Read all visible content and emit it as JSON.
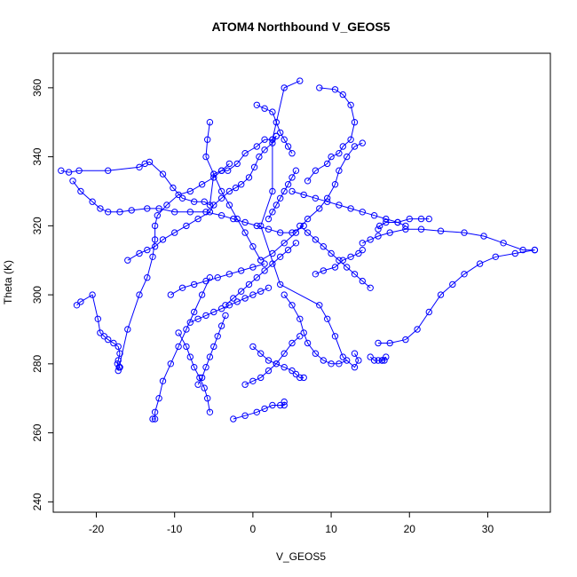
{
  "chart_data": {
    "type": "line",
    "title": "ATOM4 Northbound V_GEOS5",
    "xlabel": "V_GEOS5",
    "ylabel": "Theta (K)",
    "xlim": [
      -25.5,
      38
    ],
    "ylim": [
      237,
      370
    ],
    "xticks": [
      -20,
      -10,
      0,
      10,
      20,
      30
    ],
    "yticks": [
      240,
      260,
      280,
      300,
      320,
      340,
      360
    ],
    "grid": false,
    "legend": "none",
    "series_color": "#0000ff",
    "markers": "open-circle",
    "series": [
      {
        "x": [
          -24.5,
          -23.5,
          -22.2,
          -18.5,
          -14.5,
          -13.8,
          -13.2,
          -11.5,
          -10.2,
          -9.0,
          -7.5,
          -6.2,
          -5.5,
          -5.0,
          -4.0,
          -3.2,
          -2.0,
          -1.0,
          0.5,
          1.5,
          2.5,
          3.0
        ],
        "y": [
          336,
          335.5,
          336,
          336,
          337,
          338,
          338.5,
          335,
          331,
          328,
          327,
          327,
          326,
          335,
          336,
          336,
          338,
          341,
          343,
          345,
          345,
          346
        ]
      },
      {
        "x": [
          3.0,
          2.5,
          1.5,
          0.8,
          0.2,
          -0.5,
          -1.5,
          -2.2,
          -3.0,
          -4.0,
          -5.0,
          -5.5,
          -7.0,
          -8.5,
          -10.0,
          -11.5,
          -12.5,
          -13.5,
          -14.5,
          -16.0
        ],
        "y": [
          346,
          344,
          342,
          340,
          337,
          334,
          332,
          331,
          330,
          328,
          326,
          324,
          322,
          320,
          318,
          316,
          314,
          313,
          312,
          310
        ]
      },
      {
        "x": [
          -23,
          -22,
          -20.5,
          -19.5,
          -18.5,
          -17.0,
          -15.5,
          -13.5,
          -12.0,
          -10.0,
          -8.0,
          -6.0,
          -4.0,
          -2.5,
          -1.0,
          0.5,
          2.0,
          3.5,
          5.0,
          6.5
        ],
        "y": [
          333,
          330,
          327,
          325,
          324,
          324,
          324.5,
          325,
          325,
          324,
          324,
          324,
          323,
          322,
          321,
          320,
          319,
          318,
          318,
          320
        ]
      },
      {
        "x": [
          -22.5,
          -22.0,
          -20.5,
          -19.8,
          -19.5,
          -19.0,
          -18.5,
          -17.8,
          -17.2,
          -17.0,
          -17.2,
          -17.3,
          -17.0,
          -17.1,
          -17.0
        ],
        "y": [
          297,
          298,
          300,
          293,
          289,
          288,
          287,
          286,
          285,
          283,
          281,
          280,
          279,
          279,
          279
        ]
      },
      {
        "x": [
          -17.2,
          -16.0,
          -14.5,
          -13.5,
          -12.8,
          -12.5,
          -12.5,
          -12.2,
          -11.0,
          -9.5,
          -8.0,
          -6.5,
          -5.0,
          -4.0,
          -3.0
        ],
        "y": [
          278,
          290,
          300,
          305,
          311,
          316,
          320,
          323,
          326,
          329,
          330,
          332,
          334,
          336,
          338
        ]
      },
      {
        "x": [
          6.0,
          4.0,
          2.5,
          2.5,
          1.0,
          3.5,
          8.5,
          9.5,
          10.5,
          11.5,
          13.0,
          13.5,
          13.0
        ],
        "y": [
          362,
          360,
          345,
          330,
          320,
          303,
          297,
          293,
          288,
          282,
          279,
          281,
          283
        ]
      },
      {
        "x": [
          8.5,
          10.5,
          11.5,
          12.5,
          13.0,
          12.5,
          11.5,
          11.0,
          10.0,
          9.5,
          8.0,
          7.0
        ],
        "y": [
          360,
          359.5,
          358,
          355,
          350,
          345,
          343,
          341,
          340,
          338,
          336,
          333
        ]
      },
      {
        "x": [
          14.0,
          13.0,
          12.0,
          11.0,
          10.5,
          9.5,
          8.5,
          7.0,
          5.5,
          4.0,
          2.5,
          1.0
        ],
        "y": [
          344,
          343,
          340,
          336,
          332,
          328,
          325,
          322,
          318,
          315,
          312,
          310
        ]
      },
      {
        "x": [
          36.0,
          34.5,
          32.0,
          29.5,
          27.0,
          24.0,
          21.5,
          19.5,
          17.5,
          16.0,
          15.0,
          14.0
        ],
        "y": [
          313,
          313,
          315,
          317,
          318,
          318.5,
          319,
          319,
          318,
          317,
          316,
          315
        ]
      },
      {
        "x": [
          36.0,
          33.5,
          31.0,
          29.0,
          27.0,
          25.5,
          24.0,
          22.5,
          21.0,
          19.5,
          17.5,
          16.0
        ],
        "y": [
          313,
          312,
          311,
          309,
          306,
          303,
          300,
          295,
          290,
          287,
          286,
          286
        ]
      },
      {
        "x": [
          22.5,
          21.5,
          20.0,
          18.5,
          17.0,
          16.2,
          16.0
        ],
        "y": [
          322,
          322,
          322,
          321,
          321,
          320,
          319
        ]
      },
      {
        "x": [
          16.5,
          16.8,
          17.0,
          16.5,
          16.0,
          15.5,
          15.0
        ],
        "y": [
          281,
          281,
          282,
          281,
          281,
          281,
          282
        ]
      },
      {
        "x": [
          -12.8,
          -12.5,
          -12.5,
          -12.0,
          -11.5,
          -10.5,
          -9.5,
          -8.5,
          -7.5,
          -6.5,
          -5.5
        ],
        "y": [
          264,
          264,
          266,
          270,
          275,
          280,
          285,
          290,
          295,
          300,
          305
        ]
      },
      {
        "x": [
          -2.5,
          -1.0,
          0.5,
          1.5,
          2.5,
          3.5,
          4.0,
          4.0
        ],
        "y": [
          264,
          265,
          266,
          267,
          268,
          268,
          268,
          269
        ]
      },
      {
        "x": [
          -5.5,
          -5.8,
          -6.2,
          -6.8,
          -7.5,
          -8.0,
          -8.5,
          -9.5
        ],
        "y": [
          266,
          270,
          273,
          276,
          279,
          282,
          285,
          289
        ]
      },
      {
        "x": [
          -5.5,
          -5.8,
          -6.0,
          -5.0,
          -4.0,
          -3.0,
          -2.0,
          -1.0,
          0.0,
          1.0
        ],
        "y": [
          350,
          345,
          340,
          335,
          330,
          326,
          322,
          318,
          314,
          310
        ]
      },
      {
        "x": [
          0.5,
          1.5,
          2.5,
          3.0,
          3.5,
          4.0,
          4.5,
          5.0
        ],
        "y": [
          355,
          354,
          353,
          350,
          347,
          345,
          343,
          341
        ]
      },
      {
        "x": [
          4.0,
          5.0,
          6.0,
          6.5,
          7.0,
          8.0,
          9.0,
          10.0,
          11.0,
          12.0
        ],
        "y": [
          300,
          297,
          293,
          289,
          286,
          283,
          281,
          280,
          280,
          281
        ]
      },
      {
        "x": [
          0.0,
          1.0,
          2.0,
          3.0,
          4.0,
          5.0,
          5.5,
          6.0,
          6.5
        ],
        "y": [
          285,
          283,
          281,
          280,
          279,
          278,
          277,
          276,
          276
        ]
      },
      {
        "x": [
          -10.5,
          -9.0,
          -7.5,
          -6.0,
          -4.5,
          -3.0,
          -1.5,
          0.0,
          1.5
        ],
        "y": [
          300,
          302,
          303,
          304,
          305,
          306,
          307,
          308,
          309
        ]
      },
      {
        "x": [
          -3.5,
          -2.5,
          -1.5,
          -0.5,
          0.5,
          1.5,
          2.5,
          3.5,
          4.5,
          5.5
        ],
        "y": [
          297,
          299,
          301,
          303,
          305,
          307,
          309,
          311,
          313,
          315
        ]
      },
      {
        "x": [
          2.0,
          2.5,
          3.0,
          3.5,
          4.0,
          4.5,
          5.0,
          5.5
        ],
        "y": [
          322,
          324,
          326,
          328,
          330,
          332,
          334,
          336
        ]
      },
      {
        "x": [
          -8.0,
          -7.0,
          -6.0,
          -5.0,
          -4.0,
          -3.0,
          -2.0,
          -1.0,
          0.0,
          1.0,
          2.0
        ],
        "y": [
          292,
          293,
          294,
          295,
          296,
          297,
          298,
          299,
          300,
          301,
          302
        ]
      },
      {
        "x": [
          8.0,
          9.0,
          10.5,
          11.5,
          12.5,
          13.5,
          14.0
        ],
        "y": [
          306,
          307,
          308,
          310,
          311,
          312,
          313
        ]
      },
      {
        "x": [
          5.0,
          6.5,
          8.0,
          9.5,
          11.0,
          12.5,
          14.0,
          15.5,
          17.0,
          18.5,
          19.5
        ],
        "y": [
          330,
          329,
          328,
          327,
          326,
          325,
          324,
          323,
          322,
          321,
          320
        ]
      },
      {
        "x": [
          -1.0,
          0.0,
          1.0,
          2.0,
          3.0,
          4.0,
          5.0,
          6.0
        ],
        "y": [
          274,
          275,
          276,
          278,
          280,
          283,
          286,
          288
        ]
      },
      {
        "x": [
          -7.0,
          -6.5,
          -6.0,
          -5.5,
          -5.0,
          -4.5,
          -4.0,
          -3.5
        ],
        "y": [
          274,
          276,
          279,
          282,
          285,
          288,
          291,
          294
        ]
      },
      {
        "x": [
          6.0,
          7.0,
          8.0,
          9.0,
          10.0,
          11.0,
          12.0,
          13.0,
          14.0,
          15.0
        ],
        "y": [
          320,
          318,
          316,
          314,
          312,
          310,
          308,
          306,
          304,
          302
        ]
      }
    ]
  }
}
